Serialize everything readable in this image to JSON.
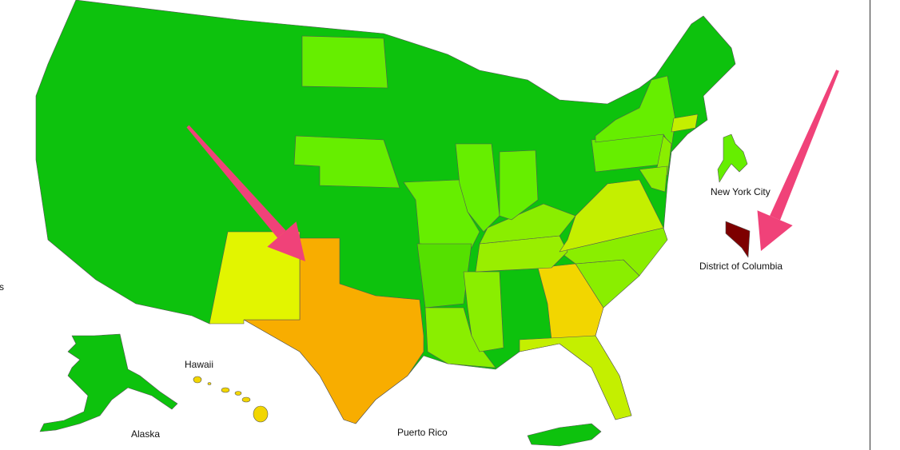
{
  "labels": {
    "left_cut": "s",
    "hawaii": "Hawaii",
    "alaska": "Alaska",
    "puerto_rico": "Puerto Rico",
    "new_york_city": "New York City",
    "district_of_columbia": "District of Columbia"
  },
  "colors": {
    "dark_green": "#0dc20d",
    "light_green": "#66ee00",
    "mid_green": "#8aee00",
    "yellow_green": "#c4ef00",
    "yellow": "#e2f500",
    "gold": "#f2d600",
    "orange": "#f8ad00",
    "dark_red": "#7d0000",
    "arrow_pink": "#f04279"
  }
}
